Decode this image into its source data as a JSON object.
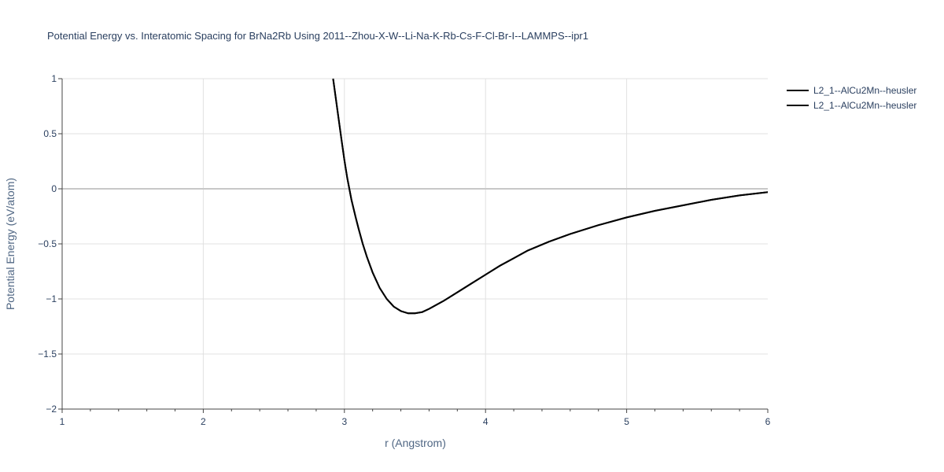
{
  "chart_data": {
    "type": "line",
    "title": "Potential Energy vs. Interatomic Spacing for BrNa2Rb Using 2011--Zhou-X-W--Li-Na-K-Rb-Cs-F-Cl-Br-I--LAMMPS--ipr1",
    "xlabel": "r (Angstrom)",
    "ylabel": "Potential Energy (eV/atom)",
    "xlim": [
      1,
      6
    ],
    "ylim": [
      -2,
      1
    ],
    "x_ticks": [
      "1",
      "2",
      "3",
      "4",
      "5",
      "6"
    ],
    "y_ticks": [
      "1",
      "0.5",
      "0",
      "−0.5",
      "−1",
      "−1.5",
      "−2"
    ],
    "grid": true,
    "legend_position": "top-right",
    "series": [
      {
        "name": "L2_1--AlCu2Mn--heusler",
        "color": "#000000",
        "x": [
          2.92,
          2.95,
          2.98,
          3.0,
          3.02,
          3.05,
          3.08,
          3.1,
          3.13,
          3.16,
          3.2,
          3.25,
          3.3,
          3.35,
          3.4,
          3.45,
          3.5,
          3.55,
          3.6,
          3.7,
          3.8,
          3.9,
          4.0,
          4.1,
          4.2,
          4.3,
          4.45,
          4.6,
          4.8,
          5.0,
          5.2,
          5.4,
          5.6,
          5.8,
          6.0
        ],
        "y": [
          1.0,
          0.72,
          0.44,
          0.26,
          0.1,
          -0.1,
          -0.26,
          -0.36,
          -0.5,
          -0.62,
          -0.76,
          -0.9,
          -1.0,
          -1.07,
          -1.11,
          -1.13,
          -1.13,
          -1.12,
          -1.09,
          -1.02,
          -0.94,
          -0.86,
          -0.78,
          -0.7,
          -0.63,
          -0.56,
          -0.48,
          -0.41,
          -0.33,
          -0.26,
          -0.2,
          -0.15,
          -0.1,
          -0.06,
          -0.03
        ]
      },
      {
        "name": "L2_1--AlCu2Mn--heusler",
        "color": "#000000",
        "x": [
          2.92,
          2.95,
          2.98,
          3.0,
          3.02,
          3.05,
          3.08,
          3.1,
          3.13,
          3.16,
          3.2,
          3.25,
          3.3,
          3.35,
          3.4,
          3.45,
          3.5,
          3.55,
          3.6,
          3.7,
          3.8,
          3.9,
          4.0,
          4.1,
          4.2,
          4.3,
          4.45,
          4.6,
          4.8,
          5.0,
          5.2,
          5.4,
          5.6,
          5.8,
          6.0
        ],
        "y": [
          1.0,
          0.72,
          0.44,
          0.26,
          0.1,
          -0.1,
          -0.26,
          -0.36,
          -0.5,
          -0.62,
          -0.76,
          -0.9,
          -1.0,
          -1.07,
          -1.11,
          -1.13,
          -1.13,
          -1.12,
          -1.09,
          -1.02,
          -0.94,
          -0.86,
          -0.78,
          -0.7,
          -0.63,
          -0.56,
          -0.48,
          -0.41,
          -0.33,
          -0.26,
          -0.2,
          -0.15,
          -0.1,
          -0.06,
          -0.03
        ]
      }
    ]
  }
}
